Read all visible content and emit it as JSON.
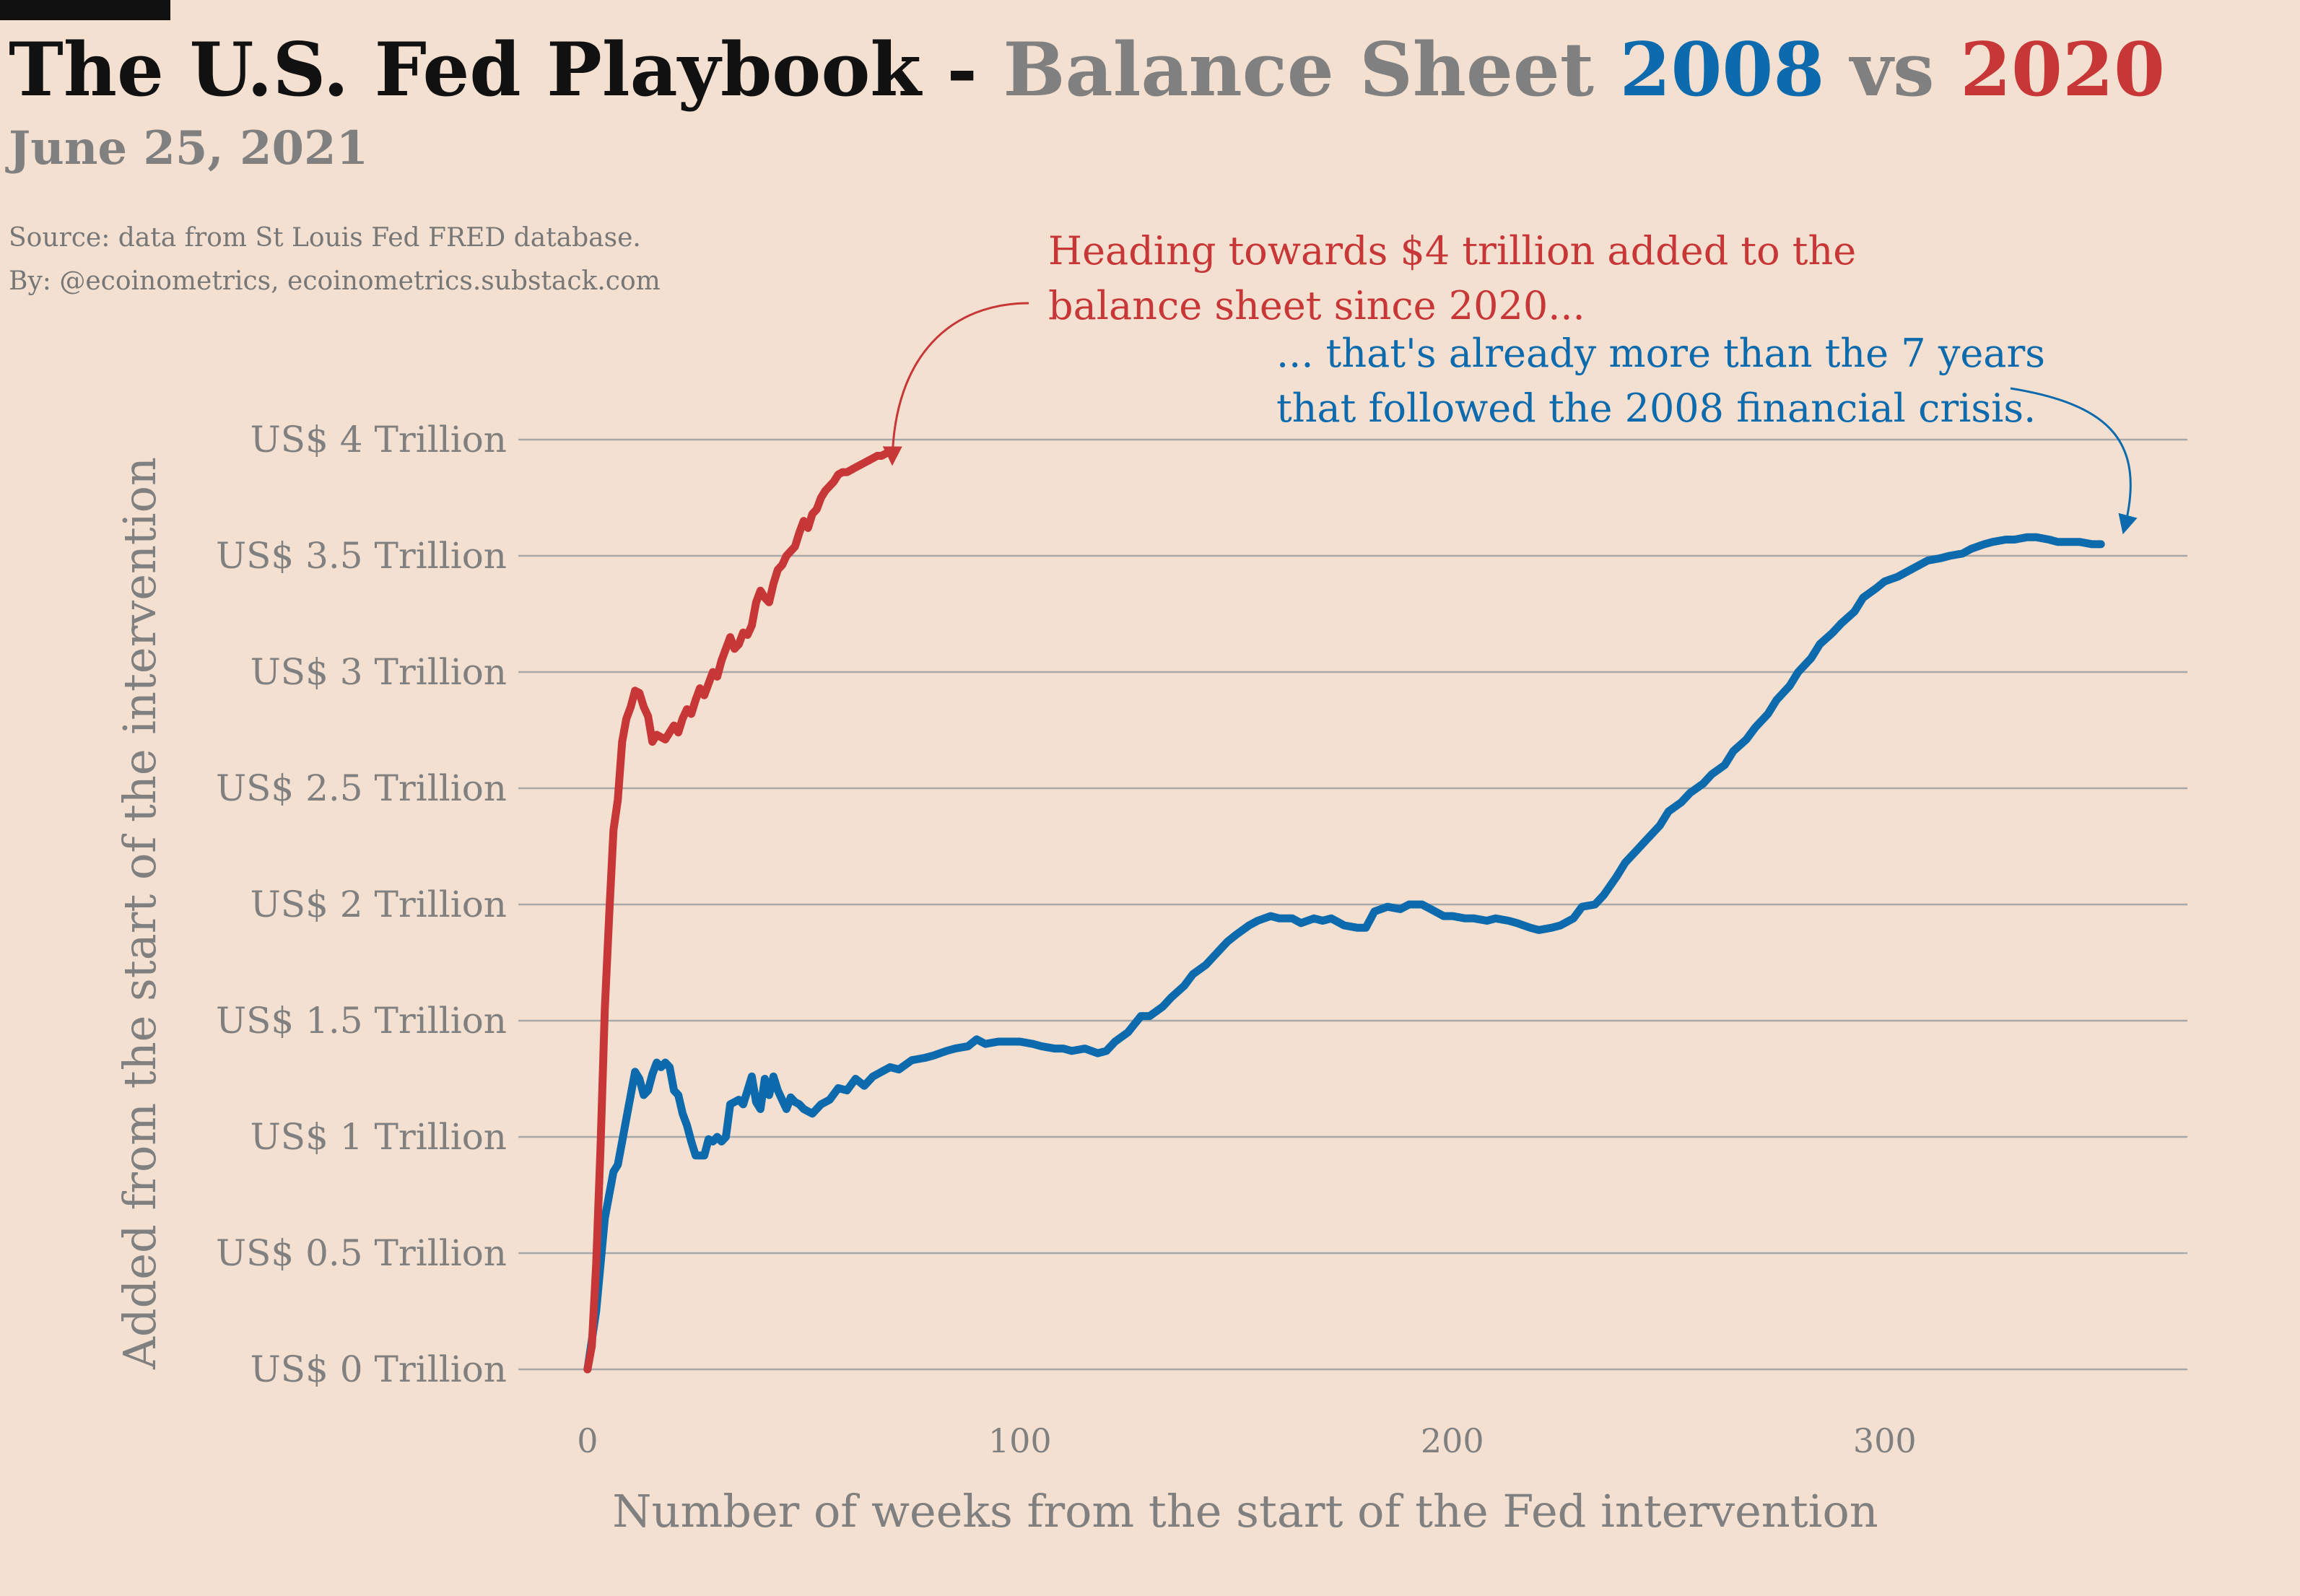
{
  "header": {
    "title_part1": "The U.S. Fed Playbook - ",
    "title_part2": "Balance Sheet ",
    "title_part3": "2008",
    "title_part4": " vs ",
    "title_part5": "2020",
    "date": "June 25, 2021",
    "source_line1": "Source: data from  St Louis Fed FRED database.",
    "source_line2": "By: @ecoinometrics, ecoinometrics.substack.com"
  },
  "annotations": {
    "red_line1": "Heading towards $4 trillion added to the",
    "red_line2": "balance sheet since 2020...",
    "blue_line1": "... that's already more than the 7 years",
    "blue_line2": "that followed the 2008 financial crisis."
  },
  "colors": {
    "background": "#f3e0d0",
    "series_2008": "#0d6aad",
    "series_2020": "#c83737",
    "grid": "#a8a8a8",
    "text_grey": "#808080"
  },
  "chart_data": {
    "type": "line",
    "xlabel": "Number of weeks from the start of the Fed intervention",
    "ylabel": "Added from the start of the intervention",
    "x_ticks": [
      0,
      100,
      200,
      300
    ],
    "x_tick_labels": [
      "0",
      "100",
      "200",
      "300"
    ],
    "y_ticks": [
      0,
      0.5,
      1,
      1.5,
      2,
      2.5,
      3,
      3.5,
      4
    ],
    "y_tick_labels": [
      "US$ 0 Trillion",
      "US$ 0.5 Trillion",
      "US$ 1 Trillion",
      "US$ 1.5 Trillion",
      "US$ 2 Trillion",
      "US$ 2.5 Trillion",
      "US$ 3 Trillion",
      "US$ 3.5 Trillion",
      "US$ 4 Trillion"
    ],
    "xlim": [
      -16,
      370
    ],
    "ylim": [
      0,
      4
    ],
    "grid": "horizontal",
    "series": [
      {
        "name": "2008",
        "color": "#0d6aad",
        "x": [
          0,
          2,
          4,
          5,
          6,
          7,
          8,
          9,
          10,
          11,
          12,
          13,
          14,
          15,
          16,
          17,
          18,
          19,
          20,
          21,
          22,
          23,
          24,
          25,
          27,
          28,
          29,
          30,
          31,
          32,
          33,
          34,
          35,
          36,
          37,
          38,
          39,
          40,
          41,
          42,
          43,
          44,
          45,
          46,
          47,
          48,
          49,
          50,
          52,
          54,
          56,
          58,
          60,
          62,
          64,
          66,
          68,
          70,
          72,
          75,
          78,
          80,
          83,
          85,
          88,
          90,
          92,
          95,
          98,
          100,
          103,
          105,
          108,
          110,
          112,
          115,
          118,
          120,
          122,
          125,
          128,
          130,
          133,
          135,
          138,
          140,
          143,
          145,
          148,
          150,
          153,
          155,
          158,
          160,
          163,
          165,
          168,
          170,
          172,
          173,
          175,
          178,
          180,
          182,
          185,
          188,
          190,
          193,
          195,
          198,
          200,
          203,
          205,
          208,
          210,
          213,
          215,
          218,
          220,
          223,
          225,
          228,
          230,
          233,
          235,
          238,
          240,
          243,
          245,
          248,
          250,
          253,
          255,
          258,
          260,
          263,
          265,
          268,
          270,
          273,
          275,
          278,
          280,
          283,
          285,
          288,
          290,
          293,
          295,
          298,
          300,
          303,
          305,
          308,
          310,
          313,
          315,
          318,
          320,
          323,
          325,
          328,
          330,
          333,
          335,
          338,
          340,
          343,
          345,
          348,
          350
        ],
        "y": [
          0,
          0.25,
          0.65,
          0.75,
          0.85,
          0.88,
          0.98,
          1.08,
          1.18,
          1.28,
          1.25,
          1.18,
          1.2,
          1.27,
          1.32,
          1.3,
          1.32,
          1.3,
          1.2,
          1.18,
          1.1,
          1.05,
          0.98,
          0.92,
          0.92,
          0.99,
          0.98,
          1.0,
          0.98,
          1.0,
          1.14,
          1.15,
          1.16,
          1.14,
          1.2,
          1.26,
          1.15,
          1.12,
          1.25,
          1.18,
          1.26,
          1.2,
          1.16,
          1.12,
          1.17,
          1.15,
          1.14,
          1.12,
          1.1,
          1.14,
          1.16,
          1.21,
          1.2,
          1.25,
          1.22,
          1.26,
          1.28,
          1.3,
          1.29,
          1.33,
          1.34,
          1.35,
          1.37,
          1.38,
          1.39,
          1.42,
          1.4,
          1.41,
          1.41,
          1.41,
          1.4,
          1.39,
          1.38,
          1.38,
          1.37,
          1.38,
          1.36,
          1.37,
          1.41,
          1.45,
          1.52,
          1.52,
          1.56,
          1.6,
          1.65,
          1.7,
          1.74,
          1.78,
          1.84,
          1.87,
          1.91,
          1.93,
          1.95,
          1.94,
          1.94,
          1.92,
          1.94,
          1.93,
          1.94,
          1.93,
          1.91,
          1.9,
          1.9,
          1.97,
          1.99,
          1.98,
          2.0,
          2.0,
          1.98,
          1.95,
          1.95,
          1.94,
          1.94,
          1.93,
          1.94,
          1.93,
          1.92,
          1.9,
          1.89,
          1.9,
          1.91,
          1.94,
          1.99,
          2.0,
          2.04,
          2.12,
          2.18,
          2.24,
          2.28,
          2.34,
          2.4,
          2.44,
          2.48,
          2.52,
          2.56,
          2.6,
          2.66,
          2.71,
          2.76,
          2.82,
          2.88,
          2.94,
          3.0,
          3.06,
          3.12,
          3.17,
          3.21,
          3.26,
          3.32,
          3.36,
          3.39,
          3.41,
          3.43,
          3.46,
          3.48,
          3.49,
          3.5,
          3.51,
          3.53,
          3.55,
          3.56,
          3.57,
          3.57,
          3.58,
          3.58,
          3.57,
          3.56,
          3.56,
          3.56,
          3.55,
          3.55
        ]
      },
      {
        "name": "2020",
        "color": "#c83737",
        "x": [
          0,
          1,
          2,
          3,
          4,
          5,
          6,
          7,
          8,
          9,
          10,
          11,
          12,
          13,
          14,
          15,
          16,
          17,
          18,
          19,
          20,
          21,
          22,
          23,
          24,
          25,
          26,
          27,
          28,
          29,
          30,
          31,
          32,
          33,
          34,
          35,
          36,
          37,
          38,
          39,
          40,
          41,
          42,
          43,
          44,
          45,
          46,
          47,
          48,
          49,
          50,
          51,
          52,
          53,
          54,
          55,
          56,
          57,
          58,
          59,
          60,
          61,
          62,
          63,
          64,
          65,
          66,
          67,
          68,
          69
        ],
        "y": [
          0,
          0.1,
          0.45,
          0.95,
          1.55,
          1.95,
          2.32,
          2.45,
          2.7,
          2.8,
          2.85,
          2.92,
          2.91,
          2.85,
          2.81,
          2.7,
          2.73,
          2.72,
          2.71,
          2.74,
          2.77,
          2.74,
          2.8,
          2.84,
          2.82,
          2.88,
          2.93,
          2.9,
          2.95,
          3.0,
          2.98,
          3.05,
          3.1,
          3.15,
          3.1,
          3.12,
          3.17,
          3.16,
          3.2,
          3.3,
          3.35,
          3.32,
          3.3,
          3.38,
          3.44,
          3.46,
          3.5,
          3.52,
          3.54,
          3.6,
          3.65,
          3.62,
          3.68,
          3.7,
          3.75,
          3.78,
          3.8,
          3.82,
          3.85,
          3.86,
          3.86,
          3.87,
          3.88,
          3.89,
          3.9,
          3.91,
          3.92,
          3.93,
          3.93,
          3.94
        ]
      }
    ]
  }
}
